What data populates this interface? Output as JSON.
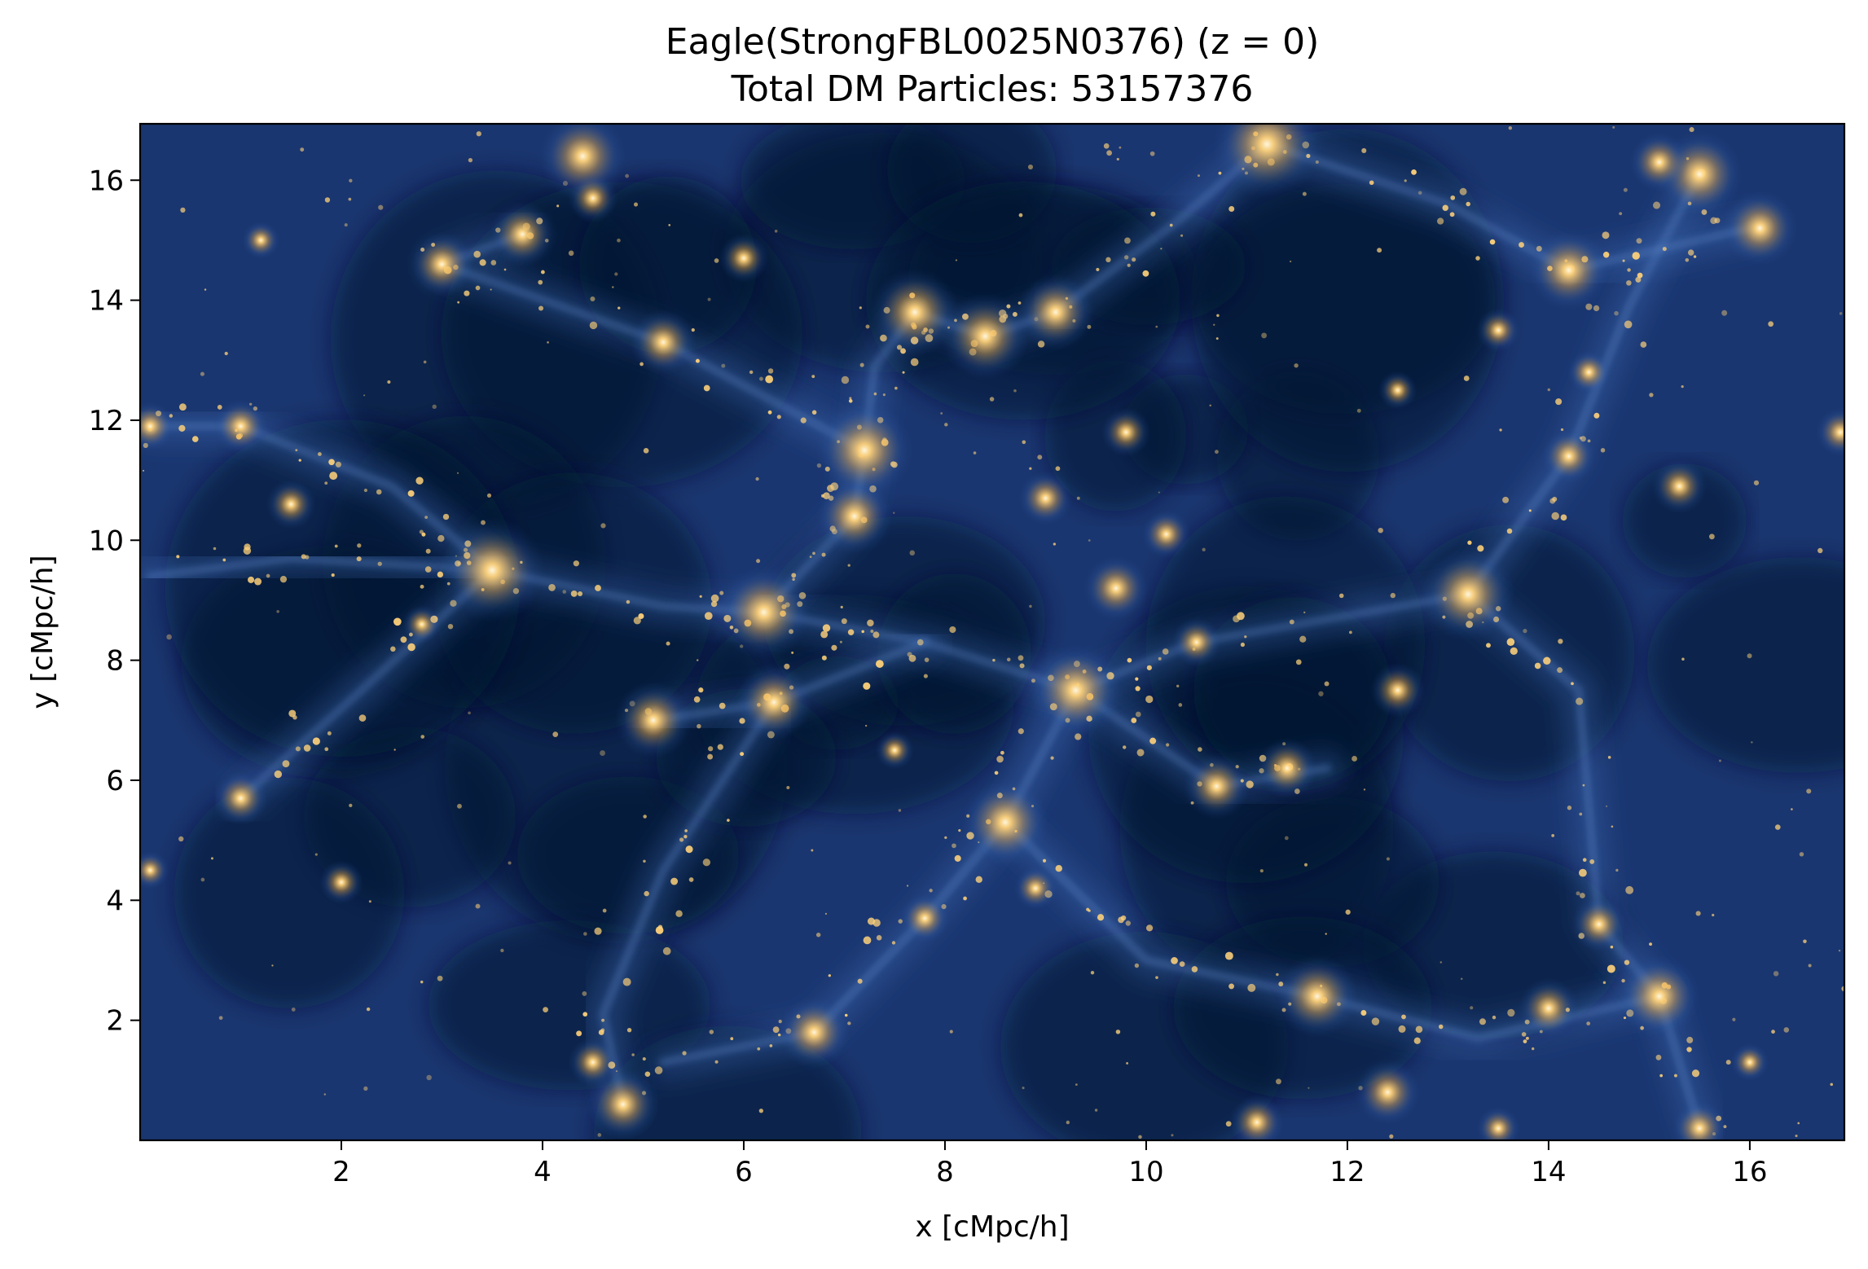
{
  "chart_data": {
    "type": "heatmap",
    "title": "Eagle(StrongFBL0025N0376) (z = 0)",
    "subtitle": "Total DM Particles: 53157376",
    "xlabel": "x [cMpc/h]",
    "ylabel": "y [cMpc/h]",
    "xlim": [
      0,
      16.94
    ],
    "ylim": [
      0,
      16.94
    ],
    "xticks": [
      2,
      4,
      6,
      8,
      10,
      12,
      14,
      16
    ],
    "yticks": [
      2,
      4,
      6,
      8,
      10,
      12,
      14,
      16
    ],
    "grid": false,
    "colormap": {
      "low": "#0b1530",
      "mid": "#1f4488",
      "high": "#ffd27a",
      "peak": "#fff4d8"
    },
    "filaments": [
      [
        [
          3.5,
          9.5
        ],
        [
          5.2,
          8.9
        ],
        [
          6.2,
          8.8
        ],
        [
          7.1,
          10.4
        ],
        [
          7.2,
          11.5
        ],
        [
          7.3,
          12.9
        ],
        [
          7.7,
          13.8
        ],
        [
          8.4,
          13.4
        ],
        [
          9.1,
          13.8
        ]
      ],
      [
        [
          7.2,
          11.5
        ],
        [
          5.2,
          13.3
        ],
        [
          3.0,
          14.6
        ],
        [
          3.8,
          15.1
        ]
      ],
      [
        [
          9.1,
          13.8
        ],
        [
          10.3,
          15.3
        ],
        [
          11.2,
          16.6
        ]
      ],
      [
        [
          0.1,
          11.9
        ],
        [
          1.0,
          11.9
        ],
        [
          2.5,
          10.9
        ],
        [
          3.5,
          9.5
        ]
      ],
      [
        [
          6.2,
          8.8
        ],
        [
          7.8,
          8.3
        ],
        [
          9.3,
          7.5
        ],
        [
          10.7,
          5.9
        ],
        [
          11.8,
          6.2
        ]
      ],
      [
        [
          9.3,
          7.5
        ],
        [
          8.6,
          5.3
        ],
        [
          7.8,
          3.7
        ],
        [
          6.7,
          1.8
        ],
        [
          5.2,
          1.3
        ]
      ],
      [
        [
          8.6,
          5.3
        ],
        [
          10.0,
          3.0
        ],
        [
          11.7,
          2.4
        ],
        [
          13.3,
          1.7
        ],
        [
          15.1,
          2.4
        ]
      ],
      [
        [
          9.3,
          7.5
        ],
        [
          10.5,
          8.3
        ],
        [
          13.2,
          9.1
        ],
        [
          14.2,
          11.4
        ],
        [
          14.8,
          13.9
        ],
        [
          15.5,
          16.1
        ]
      ],
      [
        [
          13.2,
          9.1
        ],
        [
          14.3,
          7.5
        ],
        [
          14.5,
          3.6
        ],
        [
          15.1,
          2.4
        ],
        [
          15.5,
          0.2
        ]
      ],
      [
        [
          11.2,
          16.6
        ],
        [
          13.0,
          15.6
        ],
        [
          14.2,
          14.5
        ],
        [
          16.0,
          15.2
        ]
      ],
      [
        [
          0.1,
          9.4
        ],
        [
          1.5,
          9.7
        ],
        [
          3.5,
          9.5
        ]
      ],
      [
        [
          5.1,
          7.0
        ],
        [
          6.3,
          7.3
        ],
        [
          7.8,
          8.3
        ]
      ],
      [
        [
          4.8,
          0.6
        ],
        [
          4.6,
          2.1
        ],
        [
          5.2,
          4.5
        ],
        [
          6.3,
          7.3
        ]
      ],
      [
        [
          1.0,
          5.7
        ],
        [
          2.2,
          7.5
        ],
        [
          3.5,
          9.5
        ]
      ]
    ],
    "halos": [
      [
        11.2,
        16.6,
        1.0
      ],
      [
        3.5,
        9.5,
        0.95
      ],
      [
        4.4,
        16.4,
        0.8
      ],
      [
        15.5,
        16.1,
        0.8
      ],
      [
        16.1,
        15.2,
        0.7
      ],
      [
        7.2,
        11.5,
        0.9
      ],
      [
        7.7,
        13.8,
        0.8
      ],
      [
        8.4,
        13.4,
        0.8
      ],
      [
        9.1,
        13.8,
        0.7
      ],
      [
        6.2,
        8.8,
        0.85
      ],
      [
        9.3,
        7.5,
        0.85
      ],
      [
        13.2,
        9.1,
        0.85
      ],
      [
        8.6,
        5.3,
        0.8
      ],
      [
        14.2,
        14.5,
        0.75
      ],
      [
        5.1,
        7.0,
        0.7
      ],
      [
        6.3,
        7.3,
        0.7
      ],
      [
        7.1,
        10.4,
        0.7
      ],
      [
        11.7,
        2.4,
        0.75
      ],
      [
        15.1,
        2.4,
        0.75
      ],
      [
        4.8,
        0.6,
        0.65
      ],
      [
        6.7,
        1.8,
        0.65
      ],
      [
        12.4,
        0.8,
        0.6
      ],
      [
        3.0,
        14.6,
        0.6
      ],
      [
        3.8,
        15.1,
        0.6
      ],
      [
        5.2,
        13.3,
        0.6
      ],
      [
        1.0,
        11.9,
        0.5
      ],
      [
        0.1,
        11.9,
        0.45
      ],
      [
        1.5,
        10.6,
        0.45
      ],
      [
        1.0,
        5.7,
        0.5
      ],
      [
        2.0,
        4.3,
        0.4
      ],
      [
        4.5,
        1.3,
        0.45
      ],
      [
        14.0,
        2.2,
        0.55
      ],
      [
        14.5,
        3.6,
        0.5
      ],
      [
        12.5,
        7.5,
        0.5
      ],
      [
        10.7,
        5.9,
        0.6
      ],
      [
        11.4,
        6.2,
        0.55
      ],
      [
        9.7,
        9.2,
        0.6
      ],
      [
        9.0,
        10.7,
        0.5
      ],
      [
        10.2,
        10.1,
        0.45
      ],
      [
        15.3,
        10.9,
        0.5
      ],
      [
        14.2,
        11.4,
        0.5
      ],
      [
        15.1,
        16.3,
        0.55
      ],
      [
        16.9,
        11.8,
        0.45
      ],
      [
        7.8,
        3.7,
        0.45
      ],
      [
        8.9,
        4.2,
        0.4
      ],
      [
        10.5,
        8.3,
        0.45
      ],
      [
        13.5,
        13.5,
        0.4
      ],
      [
        9.8,
        11.8,
        0.45
      ],
      [
        6.0,
        14.7,
        0.45
      ],
      [
        7.5,
        6.5,
        0.35
      ],
      [
        11.1,
        0.3,
        0.5
      ],
      [
        15.5,
        0.2,
        0.5
      ],
      [
        13.5,
        0.2,
        0.4
      ],
      [
        0.1,
        4.5,
        0.35
      ],
      [
        4.5,
        15.7,
        0.45
      ],
      [
        12.5,
        12.5,
        0.35
      ],
      [
        14.4,
        12.8,
        0.4
      ],
      [
        16.0,
        1.3,
        0.35
      ],
      [
        2.8,
        8.6,
        0.35
      ],
      [
        1.2,
        15.0,
        0.35
      ]
    ]
  }
}
